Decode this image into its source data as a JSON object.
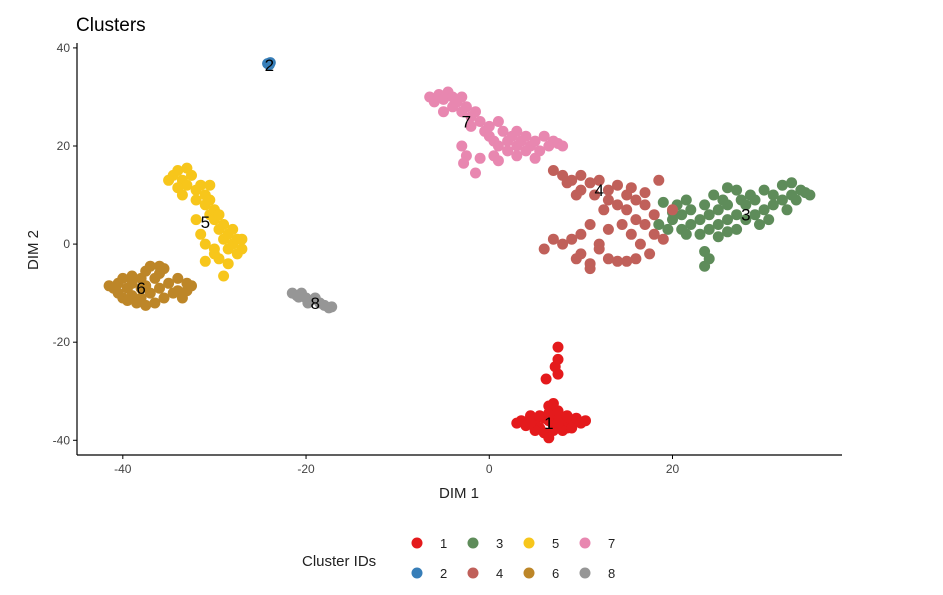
{
  "chart_data": {
    "type": "scatter",
    "title": "Clusters",
    "xlabel": "DIM 1",
    "ylabel": "DIM 2",
    "xlim": [
      -45,
      38.5
    ],
    "ylim": [
      -43,
      41
    ],
    "x_ticks": [
      -40,
      -20,
      0,
      20
    ],
    "y_ticks": [
      -40,
      -20,
      0,
      20,
      40
    ],
    "grid": false,
    "legend": {
      "title": "Cluster IDs",
      "position": "bottom",
      "entries": [
        "1",
        "2",
        "3",
        "4",
        "5",
        "6",
        "7",
        "8"
      ]
    },
    "series": [
      {
        "name": "1",
        "color": "#e41a1c",
        "label_pos": [
          6.5,
          -36.5
        ],
        "points": [
          [
            3.5,
            -36
          ],
          [
            4,
            -37
          ],
          [
            4.5,
            -35
          ],
          [
            5,
            -36.5
          ],
          [
            5.5,
            -37.5
          ],
          [
            6,
            -35.5
          ],
          [
            6.5,
            -36
          ],
          [
            7,
            -37
          ],
          [
            7.5,
            -35
          ],
          [
            8,
            -36.5
          ],
          [
            8.5,
            -37.5
          ],
          [
            9,
            -36
          ],
          [
            9.5,
            -35.5
          ],
          [
            10,
            -36.5
          ],
          [
            5,
            -38
          ],
          [
            6,
            -38.5
          ],
          [
            7,
            -38
          ],
          [
            8,
            -38
          ],
          [
            6.5,
            -39.5
          ],
          [
            9,
            -37.5
          ],
          [
            4.5,
            -36.5
          ],
          [
            7.5,
            -36.5
          ],
          [
            5.5,
            -35
          ],
          [
            8.5,
            -35
          ],
          [
            6.5,
            -34.5
          ],
          [
            7.5,
            -34
          ],
          [
            6.5,
            -33
          ],
          [
            7,
            -32.5
          ],
          [
            7.5,
            -26.5
          ],
          [
            7.2,
            -25
          ],
          [
            7.5,
            -23.5
          ],
          [
            6.2,
            -27.5
          ],
          [
            7.5,
            -21
          ],
          [
            10.5,
            -36
          ],
          [
            3,
            -36.5
          ]
        ]
      },
      {
        "name": "2",
        "color": "#377eb8",
        "label_pos": [
          -24,
          36.5
        ],
        "points": [
          [
            -24.2,
            36.8
          ],
          [
            -24,
            36.6
          ],
          [
            -23.9,
            37
          ]
        ]
      },
      {
        "name": "3",
        "color": "#5e8c5a",
        "label_pos": [
          28,
          6
        ],
        "points": [
          [
            18.5,
            4
          ],
          [
            19.5,
            3
          ],
          [
            20,
            5
          ],
          [
            21,
            6
          ],
          [
            21,
            3
          ],
          [
            22,
            4
          ],
          [
            22,
            7
          ],
          [
            23,
            5
          ],
          [
            23.5,
            8
          ],
          [
            24,
            3
          ],
          [
            24,
            6
          ],
          [
            25,
            4
          ],
          [
            25,
            7
          ],
          [
            25.5,
            9
          ],
          [
            26,
            5
          ],
          [
            26,
            8
          ],
          [
            27,
            6
          ],
          [
            27,
            3
          ],
          [
            27.5,
            9
          ],
          [
            28,
            5
          ],
          [
            28,
            8
          ],
          [
            28.5,
            10
          ],
          [
            29,
            6
          ],
          [
            29,
            9
          ],
          [
            30,
            7
          ],
          [
            30,
            11
          ],
          [
            30.5,
            5
          ],
          [
            31,
            8
          ],
          [
            31,
            10
          ],
          [
            32,
            9
          ],
          [
            32,
            12
          ],
          [
            32.5,
            7
          ],
          [
            33,
            10
          ],
          [
            33,
            12.5
          ],
          [
            33.5,
            9
          ],
          [
            34,
            11
          ],
          [
            34.5,
            10.5
          ],
          [
            35,
            10
          ],
          [
            21.5,
            2
          ],
          [
            23,
            2
          ],
          [
            26,
            2.5
          ],
          [
            29.5,
            4
          ],
          [
            20.5,
            8
          ],
          [
            24.5,
            10
          ],
          [
            27,
            11
          ],
          [
            26,
            11.5
          ],
          [
            25,
            1.5
          ],
          [
            23.5,
            -1.5
          ],
          [
            24,
            -3
          ],
          [
            23.5,
            -4.5
          ],
          [
            19,
            8.5
          ],
          [
            21.5,
            9
          ],
          [
            20,
            6.5
          ]
        ]
      },
      {
        "name": "4",
        "color": "#c0605a",
        "label_pos": [
          12,
          11
        ],
        "points": [
          [
            7,
            15
          ],
          [
            8,
            14
          ],
          [
            9,
            13
          ],
          [
            10,
            14
          ],
          [
            10,
            11
          ],
          [
            11,
            12.5
          ],
          [
            11.5,
            10
          ],
          [
            12,
            13
          ],
          [
            13,
            11
          ],
          [
            13,
            9
          ],
          [
            14,
            12
          ],
          [
            14,
            8
          ],
          [
            15,
            10
          ],
          [
            15,
            7
          ],
          [
            16,
            9
          ],
          [
            16,
            5
          ],
          [
            17,
            8
          ],
          [
            17,
            4
          ],
          [
            18,
            6
          ],
          [
            18,
            2
          ],
          [
            19,
            1
          ],
          [
            8.5,
            12.5
          ],
          [
            9.5,
            10
          ],
          [
            12.5,
            7
          ],
          [
            14.5,
            4
          ],
          [
            15.5,
            2
          ],
          [
            16.5,
            0
          ],
          [
            17.5,
            -2
          ],
          [
            13,
            3
          ],
          [
            11,
            4
          ],
          [
            10,
            2
          ],
          [
            12,
            0
          ],
          [
            9,
            1
          ],
          [
            10,
            -2
          ],
          [
            11,
            -4
          ],
          [
            12,
            -1
          ],
          [
            13,
            -3
          ],
          [
            14,
            -3.5
          ],
          [
            15,
            -3.5
          ],
          [
            11,
            -5
          ],
          [
            9.5,
            -3
          ],
          [
            8,
            0
          ],
          [
            7,
            1
          ],
          [
            6,
            -1
          ],
          [
            16,
            -3
          ],
          [
            18.5,
            13
          ],
          [
            20,
            7
          ],
          [
            17,
            10.5
          ],
          [
            15.5,
            11.5
          ]
        ]
      },
      {
        "name": "5",
        "color": "#f7c61b",
        "label_pos": [
          -31,
          4.5
        ],
        "points": [
          [
            -34.5,
            14
          ],
          [
            -34,
            15
          ],
          [
            -33.5,
            13
          ],
          [
            -33,
            15.5
          ],
          [
            -33,
            12
          ],
          [
            -32.5,
            14
          ],
          [
            -32,
            11
          ],
          [
            -32,
            9
          ],
          [
            -31.5,
            12
          ],
          [
            -31,
            8
          ],
          [
            -31,
            10
          ],
          [
            -30.5,
            6
          ],
          [
            -30.5,
            9
          ],
          [
            -30,
            5
          ],
          [
            -30,
            7
          ],
          [
            -29.5,
            3
          ],
          [
            -29.5,
            6
          ],
          [
            -29,
            1
          ],
          [
            -29,
            4
          ],
          [
            -28.5,
            2
          ],
          [
            -28.5,
            -1
          ],
          [
            -28,
            0
          ],
          [
            -28,
            3
          ],
          [
            -27.5,
            1
          ],
          [
            -27.5,
            -2
          ],
          [
            -27,
            -1
          ],
          [
            -27,
            1
          ],
          [
            -30,
            -1
          ],
          [
            -29.5,
            -3
          ],
          [
            -28.5,
            -4
          ],
          [
            -31,
            0
          ],
          [
            -31.5,
            2
          ],
          [
            -32,
            5
          ],
          [
            -33.5,
            10
          ],
          [
            -34,
            11.5
          ],
          [
            -35,
            13
          ],
          [
            -30.5,
            12
          ],
          [
            -29,
            -6.5
          ],
          [
            -31,
            -3.5
          ],
          [
            -30,
            -2
          ]
        ]
      },
      {
        "name": "6",
        "color": "#bd8628",
        "label_pos": [
          -38,
          -9
        ],
        "points": [
          [
            -41,
            -9
          ],
          [
            -40.5,
            -8
          ],
          [
            -40.5,
            -10
          ],
          [
            -40,
            -7
          ],
          [
            -40,
            -11
          ],
          [
            -39.5,
            -9
          ],
          [
            -39,
            -6.5
          ],
          [
            -39,
            -8
          ],
          [
            -39,
            -10.5
          ],
          [
            -38.5,
            -12
          ],
          [
            -38,
            -7
          ],
          [
            -38,
            -9
          ],
          [
            -38,
            -11
          ],
          [
            -37.5,
            -5.5
          ],
          [
            -37.5,
            -8.5
          ],
          [
            -37,
            -4.5
          ],
          [
            -37,
            -10
          ],
          [
            -36.5,
            -7
          ],
          [
            -36.5,
            -12
          ],
          [
            -36,
            -9
          ],
          [
            -36,
            -6
          ],
          [
            -35.5,
            -11
          ],
          [
            -35.5,
            -5
          ],
          [
            -35,
            -8
          ],
          [
            -34.5,
            -10
          ],
          [
            -34,
            -7
          ],
          [
            -34,
            -9.5
          ],
          [
            -33.5,
            -11
          ],
          [
            -33,
            -8
          ],
          [
            -33,
            -9.5
          ],
          [
            -32.5,
            -8.5
          ],
          [
            -37.5,
            -12.5
          ],
          [
            -39.5,
            -11.5
          ],
          [
            -41.5,
            -8.5
          ],
          [
            -36,
            -4.5
          ]
        ]
      },
      {
        "name": "7",
        "color": "#e887b0",
        "label_pos": [
          -2.5,
          25
        ],
        "points": [
          [
            -6.5,
            30
          ],
          [
            -6,
            29
          ],
          [
            -5.5,
            30.5
          ],
          [
            -5,
            29.5
          ],
          [
            -4.5,
            31
          ],
          [
            -4,
            30
          ],
          [
            -4,
            28
          ],
          [
            -3.5,
            29
          ],
          [
            -3,
            27
          ],
          [
            -3,
            30
          ],
          [
            -2.5,
            28
          ],
          [
            -2,
            26
          ],
          [
            -2,
            24
          ],
          [
            -1.5,
            27
          ],
          [
            -1,
            25
          ],
          [
            -0.5,
            23
          ],
          [
            0,
            24
          ],
          [
            0,
            22
          ],
          [
            0.5,
            21
          ],
          [
            1,
            25
          ],
          [
            1,
            20
          ],
          [
            1.5,
            23
          ],
          [
            2,
            21
          ],
          [
            2,
            19
          ],
          [
            2.5,
            22
          ],
          [
            3,
            20
          ],
          [
            3,
            18
          ],
          [
            3.5,
            21
          ],
          [
            4,
            19
          ],
          [
            4,
            22
          ],
          [
            4.5,
            20
          ],
          [
            5,
            21
          ],
          [
            5.5,
            19
          ],
          [
            6,
            22
          ],
          [
            6.5,
            20
          ],
          [
            7,
            21
          ],
          [
            7.5,
            20.5
          ],
          [
            8,
            20
          ],
          [
            -3,
            20
          ],
          [
            -2.5,
            18
          ],
          [
            -2.8,
            16.5
          ],
          [
            -1,
            17.5
          ],
          [
            0.5,
            18
          ],
          [
            1,
            17
          ],
          [
            -1.5,
            14.5
          ],
          [
            5,
            17.5
          ],
          [
            3,
            23
          ],
          [
            -5,
            27
          ]
        ]
      },
      {
        "name": "8",
        "color": "#969696",
        "label_pos": [
          -19,
          -12
        ],
        "points": [
          [
            -21.5,
            -10
          ],
          [
            -21,
            -10.5
          ],
          [
            -20.5,
            -10
          ],
          [
            -20,
            -11
          ],
          [
            -19.5,
            -11.5
          ],
          [
            -19,
            -11
          ],
          [
            -18.5,
            -12
          ],
          [
            -18,
            -12.5
          ],
          [
            -17.5,
            -13
          ],
          [
            -17.2,
            -12.8
          ],
          [
            -20.8,
            -10.8
          ],
          [
            -19.8,
            -12
          ]
        ]
      }
    ]
  }
}
